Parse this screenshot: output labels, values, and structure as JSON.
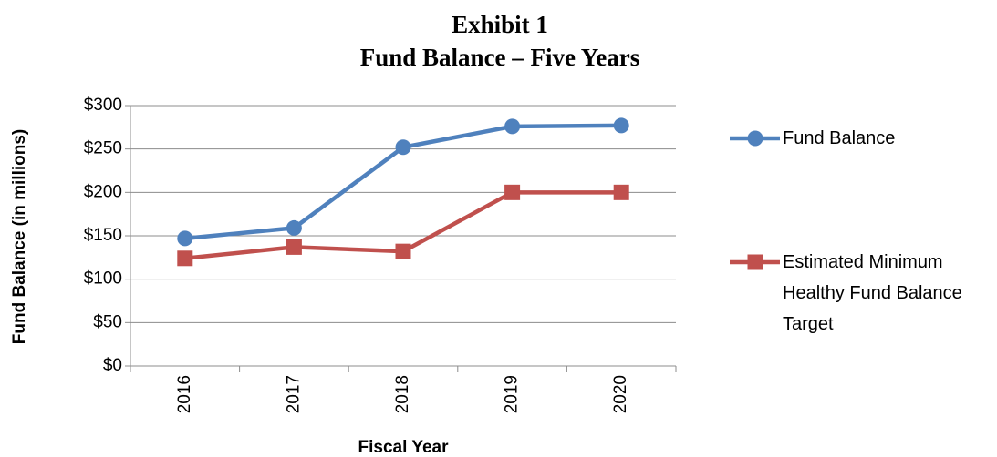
{
  "chart_data": {
    "type": "line",
    "title": "Exhibit 1",
    "subtitle": "Fund Balance – Five Years",
    "x_label": "Fiscal Year",
    "y_label": "Fund Balance (in millions)",
    "categories": [
      "2016",
      "2017",
      "2018",
      "2019",
      "2020"
    ],
    "series": [
      {
        "name": "Fund Balance",
        "color": "#4f81bd",
        "marker": "circle",
        "values": [
          147,
          159,
          252,
          276,
          277
        ]
      },
      {
        "name": "Estimated Minimum Healthy Fund Balance Target",
        "color": "#c0504d",
        "marker": "square",
        "values": [
          124,
          137,
          132,
          200,
          200
        ]
      }
    ],
    "ylim": [
      0,
      300
    ],
    "yticks": [
      {
        "value": 0,
        "label": "$0"
      },
      {
        "value": 50,
        "label": "$50"
      },
      {
        "value": 100,
        "label": "$100"
      },
      {
        "value": 150,
        "label": "$150"
      },
      {
        "value": 200,
        "label": "$200"
      },
      {
        "value": 250,
        "label": "$250"
      },
      {
        "value": 300,
        "label": "$300"
      }
    ],
    "grid": true,
    "legend": "right"
  }
}
